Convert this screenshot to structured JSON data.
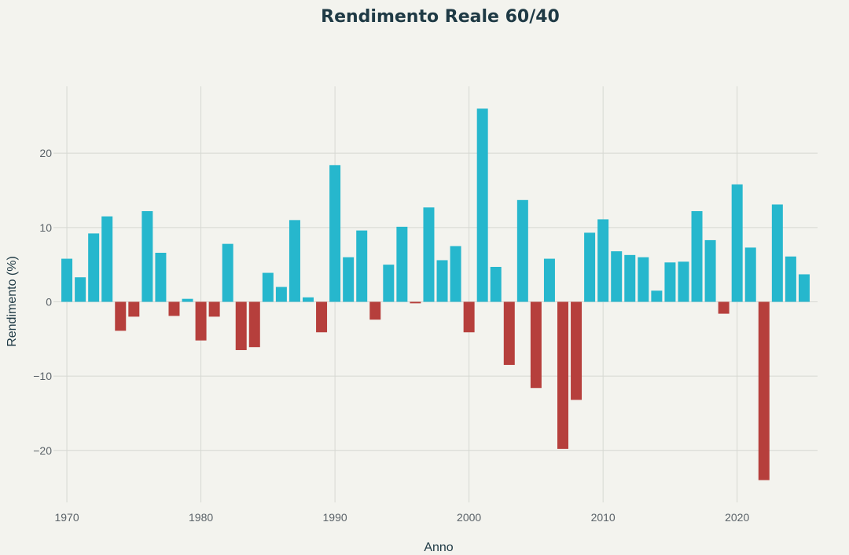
{
  "chart_data": {
    "type": "bar",
    "title": "Rendimento Reale 60/40",
    "xlabel": "Anno",
    "ylabel": "Rendimento (%)",
    "xlim": [
      1969,
      2026
    ],
    "ylim": [
      -27,
      29
    ],
    "xticks": [
      1970,
      1980,
      1990,
      2000,
      2010,
      2020
    ],
    "yticks": [
      -20,
      -10,
      0,
      10,
      20
    ],
    "ytick_labels": [
      "−20",
      "−10",
      "0",
      "10",
      "20"
    ],
    "grid": true,
    "legend": "none",
    "colors": {
      "positive": "#26b7cd",
      "negative": "#b63f3c"
    },
    "x": [
      1970,
      1971,
      1972,
      1973,
      1974,
      1975,
      1976,
      1977,
      1978,
      1979,
      1980,
      1981,
      1982,
      1983,
      1984,
      1985,
      1986,
      1987,
      1988,
      1989,
      1990,
      1991,
      1992,
      1993,
      1994,
      1995,
      1996,
      1997,
      1998,
      1999,
      2000,
      2001,
      2002,
      2003,
      2004,
      2005,
      2006,
      2007,
      2008,
      2009,
      2010,
      2011,
      2012,
      2013,
      2014,
      2015,
      2016,
      2017,
      2018,
      2019,
      2020,
      2021,
      2022,
      2023,
      2024,
      2025
    ],
    "values": [
      5.8,
      3.3,
      9.2,
      11.5,
      -3.9,
      -2.0,
      12.2,
      6.6,
      -1.9,
      0.4,
      -5.2,
      -2.0,
      7.8,
      -6.5,
      -6.1,
      3.9,
      2.0,
      11.0,
      0.6,
      -4.1,
      18.4,
      6.0,
      9.6,
      -2.4,
      5.0,
      10.1,
      -0.2,
      12.7,
      5.6,
      7.5,
      -4.1,
      26.0,
      4.7,
      -8.5,
      13.7,
      -11.6,
      5.8,
      -19.8,
      -13.2,
      9.3,
      11.1,
      6.8,
      6.3,
      6.0,
      1.5,
      5.3,
      5.4,
      12.2,
      8.3,
      -1.6,
      15.8,
      7.3,
      -24.0,
      13.1,
      6.1,
      3.7
    ]
  }
}
